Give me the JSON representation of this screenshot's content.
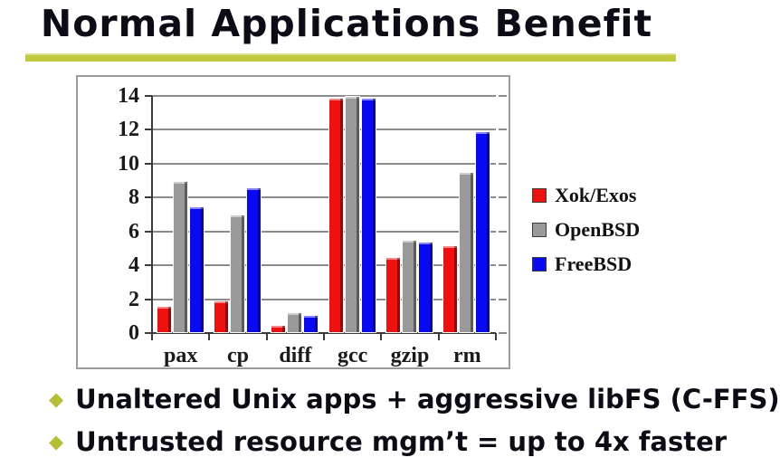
{
  "slide": {
    "title": "Normal Applications Benefit",
    "accent_color": "#c2cb3f",
    "bullet_diamond_color": "#b4bf36",
    "text_color": "#0c0c16",
    "bullets": [
      "Unaltered Unix apps + aggressive libFS (C-FFS)",
      "Untrusted resource mgm’t = up to 4x faster"
    ]
  },
  "chart_data": {
    "type": "bar",
    "title": "",
    "xlabel": "",
    "ylabel": "",
    "categories": [
      "pax",
      "cp",
      "diff",
      "gcc",
      "gzip",
      "rm"
    ],
    "series": [
      {
        "name": "Xok/Exos",
        "color": "#ee1111",
        "values": [
          1.6,
          1.9,
          0.5,
          13.9,
          4.5,
          5.2
        ]
      },
      {
        "name": "OpenBSD",
        "color": "#9a9a9a",
        "values": [
          9.0,
          7.0,
          1.25,
          14.0,
          5.5,
          9.5
        ]
      },
      {
        "name": "FreeBSD",
        "color": "#0a0af0",
        "values": [
          7.5,
          8.6,
          1.05,
          13.9,
          5.4,
          11.9
        ]
      }
    ],
    "ylim": [
      0,
      14
    ],
    "ytick_step": 2,
    "grid": true,
    "legend_position": "right",
    "gridline_color": "#8c8c8c",
    "axis_color": "#3a3a3a",
    "frame_border_color": "#9a9a9a",
    "tick_label_color": "#1a1a1a",
    "plot_background": "#ffffff"
  }
}
